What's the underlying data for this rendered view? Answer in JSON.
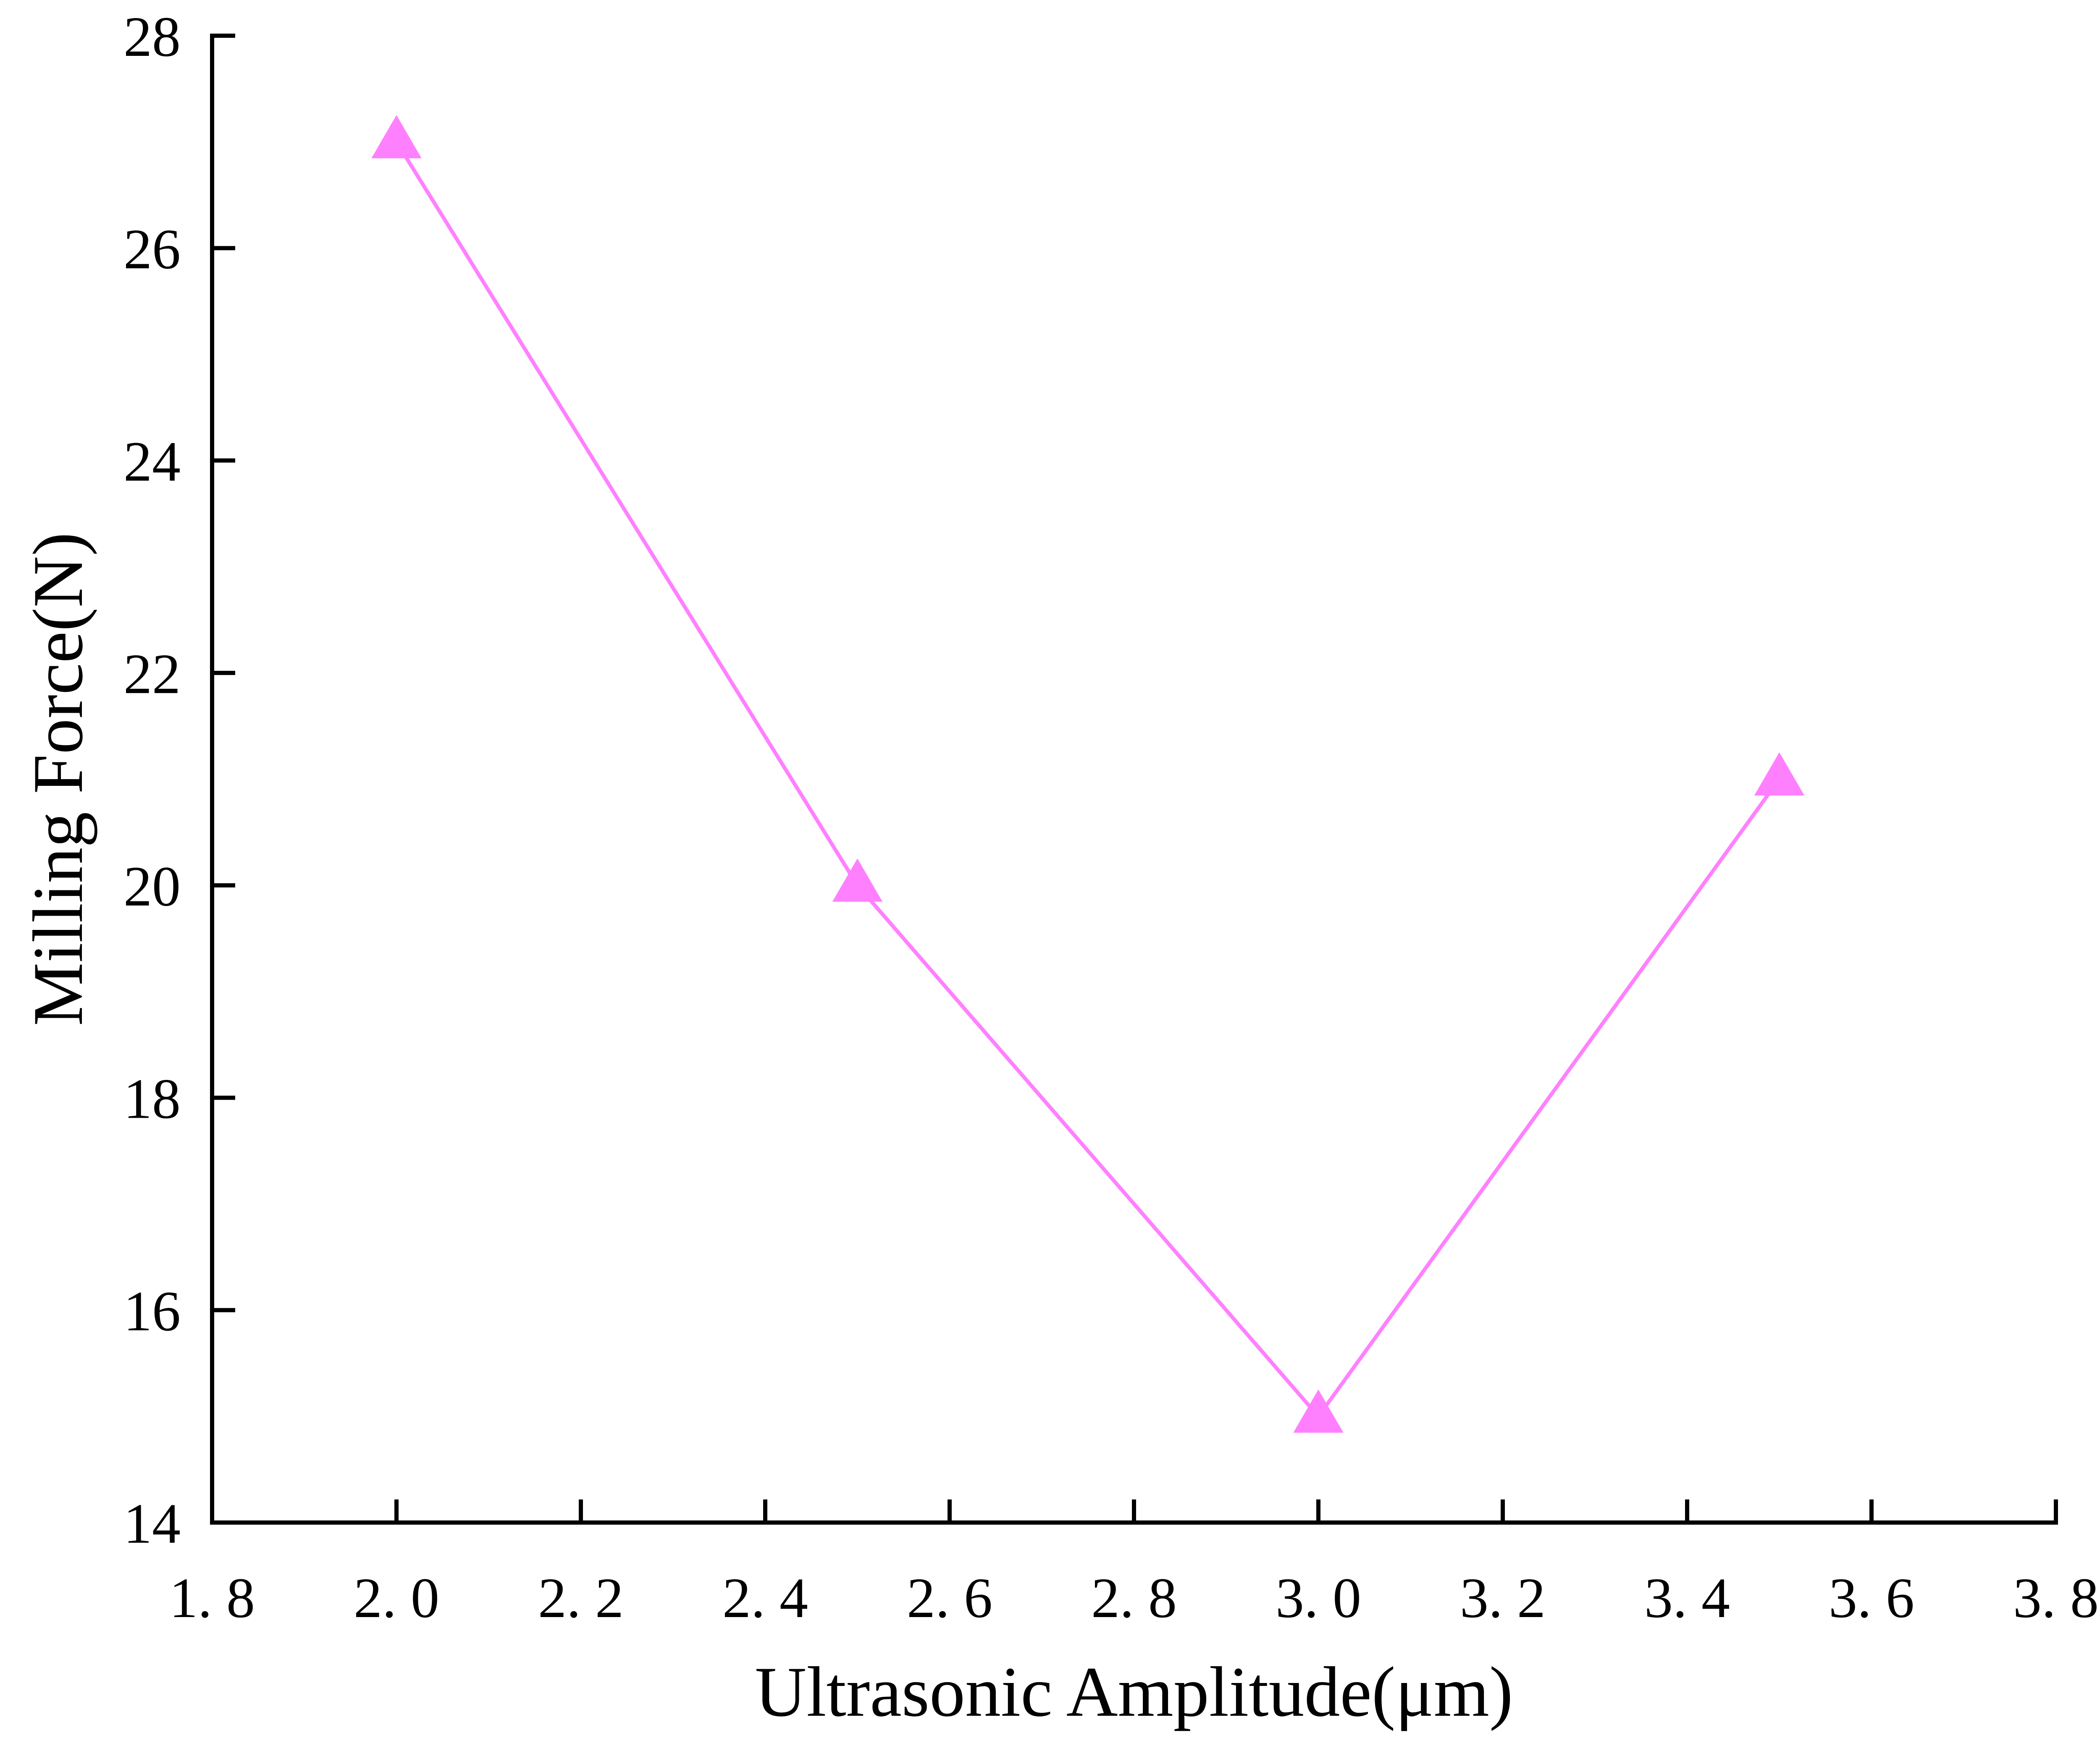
{
  "chart_data": {
    "type": "line",
    "xlabel": "Ultrasonic Amplitude(μm)",
    "ylabel": "Milling Force(N)",
    "xlim": [
      1.8,
      3.8
    ],
    "ylim": [
      14,
      28
    ],
    "x_ticks": [
      "1. 8",
      "2. 0",
      "2. 2",
      "2. 4",
      "2. 6",
      "2. 8",
      "3. 0",
      "3. 2",
      "3. 4",
      "3. 6",
      "3. 8"
    ],
    "x_tick_values": [
      1.8,
      2.0,
      2.2,
      2.4,
      2.6,
      2.8,
      3.0,
      3.2,
      3.4,
      3.6,
      3.8
    ],
    "y_ticks": [
      "14",
      "16",
      "18",
      "20",
      "22",
      "24",
      "26",
      "28"
    ],
    "y_tick_values": [
      14,
      16,
      18,
      20,
      22,
      24,
      26,
      28
    ],
    "grid": false,
    "legend": "none",
    "series": [
      {
        "x": [
          2.0,
          2.5,
          3.0,
          3.5
        ],
        "y": [
          27,
          20,
          15,
          21
        ],
        "marker": "triangle-up",
        "color": "#ff80ff"
      }
    ]
  }
}
